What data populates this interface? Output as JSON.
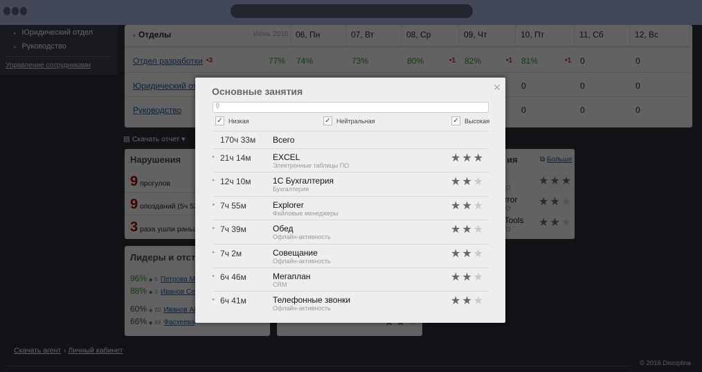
{
  "sidebar": {
    "items": [
      {
        "label": "Юридический отдел"
      },
      {
        "label": "Руководство"
      }
    ],
    "manage_link": "Управление сотрудниками"
  },
  "table": {
    "title": "Отделы",
    "period": "Июнь 2016",
    "days": [
      "06, Пн",
      "07, Вт",
      "08, Ср",
      "09, Чт",
      "10, Пт",
      "11, Сб",
      "12, Вс"
    ],
    "rows": [
      {
        "name": "Отдел разработки",
        "badge": "•3",
        "total": "77%",
        "values": [
          "74%",
          "73%",
          "80%",
          "82%",
          "81%",
          "0",
          "0"
        ],
        "marks": [
          "",
          "",
          "•1",
          "•1",
          "•1",
          "",
          ""
        ]
      },
      {
        "name": "Юридический отдел",
        "values": [
          "0",
          "0",
          "0"
        ]
      },
      {
        "name": "Руководство",
        "values": [
          "0",
          "0",
          "0"
        ]
      }
    ]
  },
  "download_report": "Скачать отчет",
  "violations": {
    "title": "Нарушения",
    "items": [
      {
        "count": "9",
        "text": "прогулов"
      },
      {
        "count": "9",
        "text": "опозданий (5ч 52м"
      },
      {
        "count": "3",
        "text": "раза ушли раньше"
      }
    ]
  },
  "leaders": {
    "title": "Лидеры и отстающие",
    "items": [
      {
        "pct": "96%",
        "rank": "5",
        "name": "Петрова М"
      },
      {
        "pct": "88%",
        "rank": "3",
        "name": "Иванов Се"
      },
      {
        "pct": "60%",
        "rank": "10",
        "name": "Иванов Ан"
      },
      {
        "pct": "66%",
        "rank": "66",
        "name": "Фасхеева"
      }
    ]
  },
  "right_panel": {
    "title": "ия",
    "more": "Больше",
    "items": [
      {
        "name": "y",
        "cat": "тка ПО",
        "stars": 3
      },
      {
        "name": "er error",
        "cat": "тка ПО",
        "stars": 2
      },
      {
        "name": "per Tools",
        "cat": "тка ПО",
        "stars": 2
      }
    ]
  },
  "modal": {
    "title": "Основные занятия",
    "search_placeholder": "",
    "filters": [
      {
        "label": "Низкая",
        "checked": true
      },
      {
        "label": "Нейтральная",
        "checked": true
      },
      {
        "label": "Высокая",
        "checked": true
      }
    ],
    "total": {
      "time": "170ч 33м",
      "label": "Всего"
    },
    "items": [
      {
        "time": "21ч 14м",
        "name": "EXCEL",
        "cat": "Электронные таблицы ПО",
        "stars": 3
      },
      {
        "time": "12ч 10м",
        "name": "1С Бухгалтерия",
        "cat": "Бухгалтерия",
        "stars": 2
      },
      {
        "time": "7ч 55м",
        "name": "Explorer",
        "cat": "Файловые менеджеры",
        "stars": 2
      },
      {
        "time": "7ч 39м",
        "name": "Обед",
        "cat": "Офлайн-активность",
        "stars": 2
      },
      {
        "time": "7ч 2м",
        "name": "Совещание",
        "cat": "Офлайн-активность",
        "stars": 2
      },
      {
        "time": "6ч 46м",
        "name": "Мегаплан",
        "cat": "CRM",
        "stars": 2
      },
      {
        "time": "6ч 41м",
        "name": "Телефонные звонки",
        "cat": "Офлайн-активность",
        "stars": 2
      }
    ]
  },
  "footer": {
    "agent": "Скачать агент",
    "cabinet": "Личный кабинет",
    "copyright": "© 2016 Disciplina"
  }
}
